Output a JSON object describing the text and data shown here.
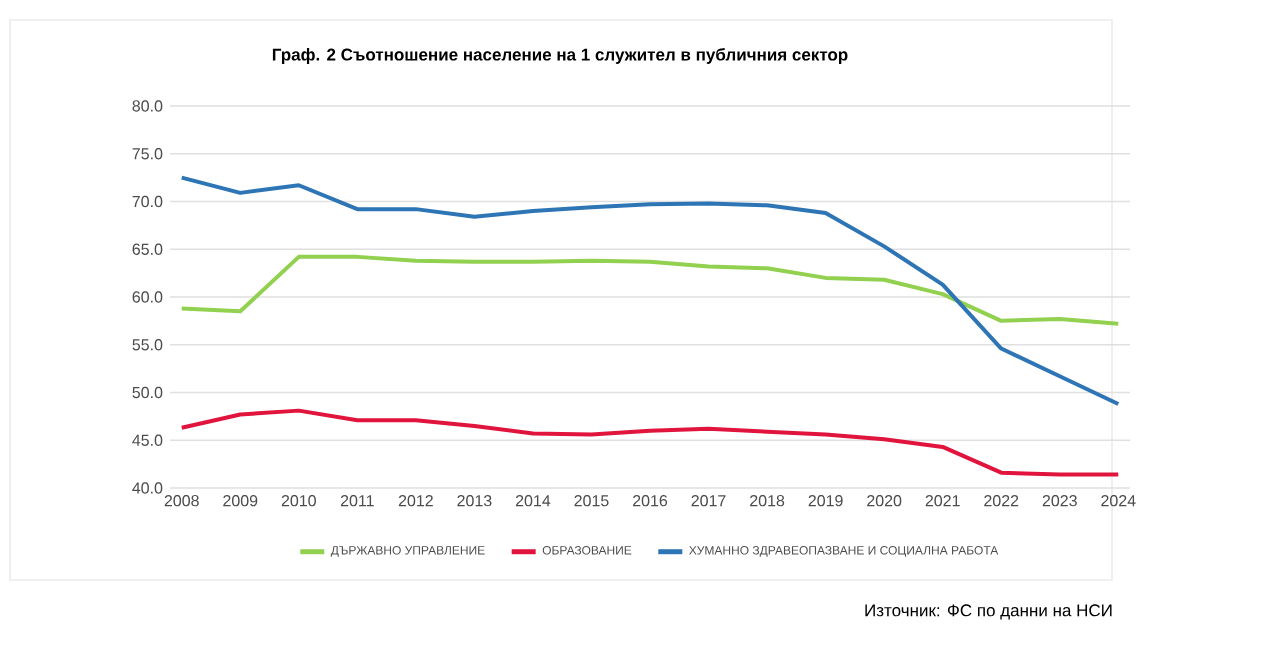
{
  "chart_data": {
    "type": "line",
    "title": "Граф. 2 Съотношение население на 1 служител в публичния сектор",
    "categories": [
      "2008",
      "2009",
      "2010",
      "2011",
      "2012",
      "2013",
      "2014",
      "2015",
      "2016",
      "2017",
      "2018",
      "2019",
      "2020",
      "2021",
      "2022",
      "2023",
      "2024"
    ],
    "series": [
      {
        "name": "ДЪРЖАВНО УПРАВЛЕНИЕ",
        "color": "#92d050",
        "values": [
          58.8,
          58.5,
          64.2,
          64.2,
          63.8,
          63.7,
          63.7,
          63.8,
          63.7,
          63.2,
          63.0,
          62.0,
          61.8,
          60.3,
          57.5,
          57.7,
          57.2
        ]
      },
      {
        "name": "ОБРАЗОВАНИЕ",
        "color": "#e0143c",
        "values": [
          46.3,
          47.7,
          48.1,
          47.1,
          47.1,
          46.5,
          45.7,
          45.6,
          46.0,
          46.2,
          45.9,
          45.6,
          45.1,
          44.3,
          41.6,
          41.4,
          41.4
        ]
      },
      {
        "name": "ХУМАННО ЗДРАВЕОПАЗВАНЕ И СОЦИАЛНА РАБОТА",
        "color": "#2e75b6",
        "values": [
          72.5,
          70.9,
          71.7,
          69.2,
          69.2,
          68.4,
          69.0,
          69.4,
          69.7,
          69.8,
          69.6,
          68.8,
          65.3,
          61.3,
          54.6,
          51.7,
          48.8
        ]
      }
    ],
    "ylim": [
      40,
      80
    ],
    "yticks": [
      {
        "value": 40,
        "label": "40.0"
      },
      {
        "value": 45,
        "label": "45.0"
      },
      {
        "value": 50,
        "label": "50.0"
      },
      {
        "value": 55,
        "label": "55.0"
      },
      {
        "value": 60,
        "label": "60.0"
      },
      {
        "value": 65,
        "label": "65.0"
      },
      {
        "value": 70,
        "label": "70.0"
      },
      {
        "value": 75,
        "label": "75.0"
      },
      {
        "value": 80,
        "label": "80.0"
      }
    ],
    "grid": "y",
    "legend": "bottom",
    "annotations": [
      "Източник: ФС по данни на НСИ"
    ]
  }
}
